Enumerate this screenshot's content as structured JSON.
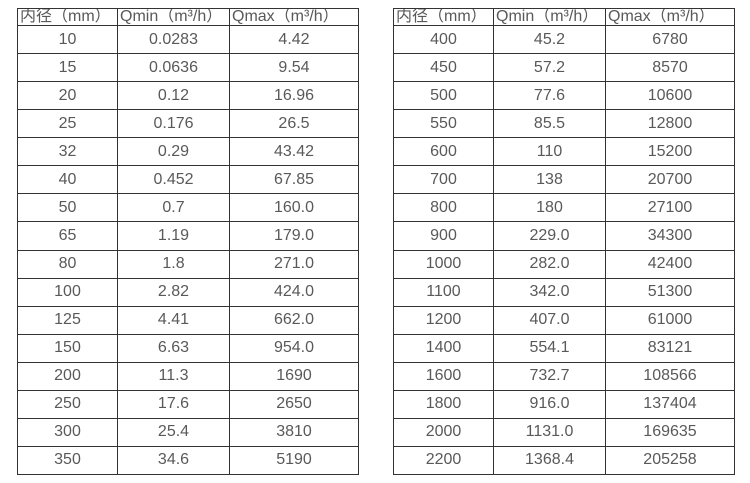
{
  "colors": {
    "background": "#ffffff",
    "border": "#333333",
    "text": "#595959"
  },
  "tables": [
    {
      "name": "diameter-flow-table-left",
      "headers": [
        "内径（mm）",
        "Qmin（m³/h）",
        "Qmax（m³/h）"
      ],
      "rows": [
        [
          "10",
          "0.0283",
          "4.42"
        ],
        [
          "15",
          "0.0636",
          "9.54"
        ],
        [
          "20",
          "0.12",
          "16.96"
        ],
        [
          "25",
          "0.176",
          "26.5"
        ],
        [
          "32",
          "0.29",
          "43.42"
        ],
        [
          "40",
          "0.452",
          "67.85"
        ],
        [
          "50",
          "0.7",
          "160.0"
        ],
        [
          "65",
          "1.19",
          "179.0"
        ],
        [
          "80",
          "1.8",
          "271.0"
        ],
        [
          "100",
          "2.82",
          "424.0"
        ],
        [
          "125",
          "4.41",
          "662.0"
        ],
        [
          "150",
          "6.63",
          "954.0"
        ],
        [
          "200",
          "11.3",
          "1690"
        ],
        [
          "250",
          "17.6",
          "2650"
        ],
        [
          "300",
          "25.4",
          "3810"
        ],
        [
          "350",
          "34.6",
          "5190"
        ]
      ]
    },
    {
      "name": "diameter-flow-table-right",
      "headers": [
        "内径（mm）",
        "Qmin（m³/h）",
        "Qmax（m³/h）"
      ],
      "rows": [
        [
          "400",
          "45.2",
          "6780"
        ],
        [
          "450",
          "57.2",
          "8570"
        ],
        [
          "500",
          "77.6",
          "10600"
        ],
        [
          "550",
          "85.5",
          "12800"
        ],
        [
          "600",
          "110",
          "15200"
        ],
        [
          "700",
          "138",
          "20700"
        ],
        [
          "800",
          "180",
          "27100"
        ],
        [
          "900",
          "229.0",
          "34300"
        ],
        [
          "1000",
          "282.0",
          "42400"
        ],
        [
          "1100",
          "342.0",
          "51300"
        ],
        [
          "1200",
          "407.0",
          "61000"
        ],
        [
          "1400",
          "554.1",
          "83121"
        ],
        [
          "1600",
          "732.7",
          "108566"
        ],
        [
          "1800",
          "916.0",
          "137404"
        ],
        [
          "2000",
          "1131.0",
          "169635"
        ],
        [
          "2200",
          "1368.4",
          "205258"
        ]
      ]
    }
  ]
}
